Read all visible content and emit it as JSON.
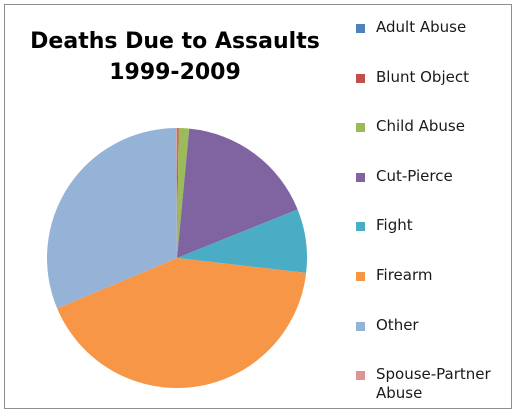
{
  "chart_data": {
    "type": "pie",
    "title_lines": [
      "Deaths Due to Assaults",
      "1999-2009"
    ],
    "categories": [
      "Adult Abuse",
      "Blunt Object",
      "Child Abuse",
      "Cut-Pierce",
      "Fight",
      "Firearm",
      "Other",
      "Spouse-Partner Abuse"
    ],
    "values": [
      0.1,
      0.1,
      1.3,
      17.4,
      7.9,
      41.8,
      31.2,
      0.1
    ],
    "colors": [
      "#4f81bd",
      "#c0504d",
      "#9bbb59",
      "#8064a2",
      "#4bacc6",
      "#f79646",
      "#95b3d7",
      "#d99694"
    ],
    "legend_position": "right"
  }
}
